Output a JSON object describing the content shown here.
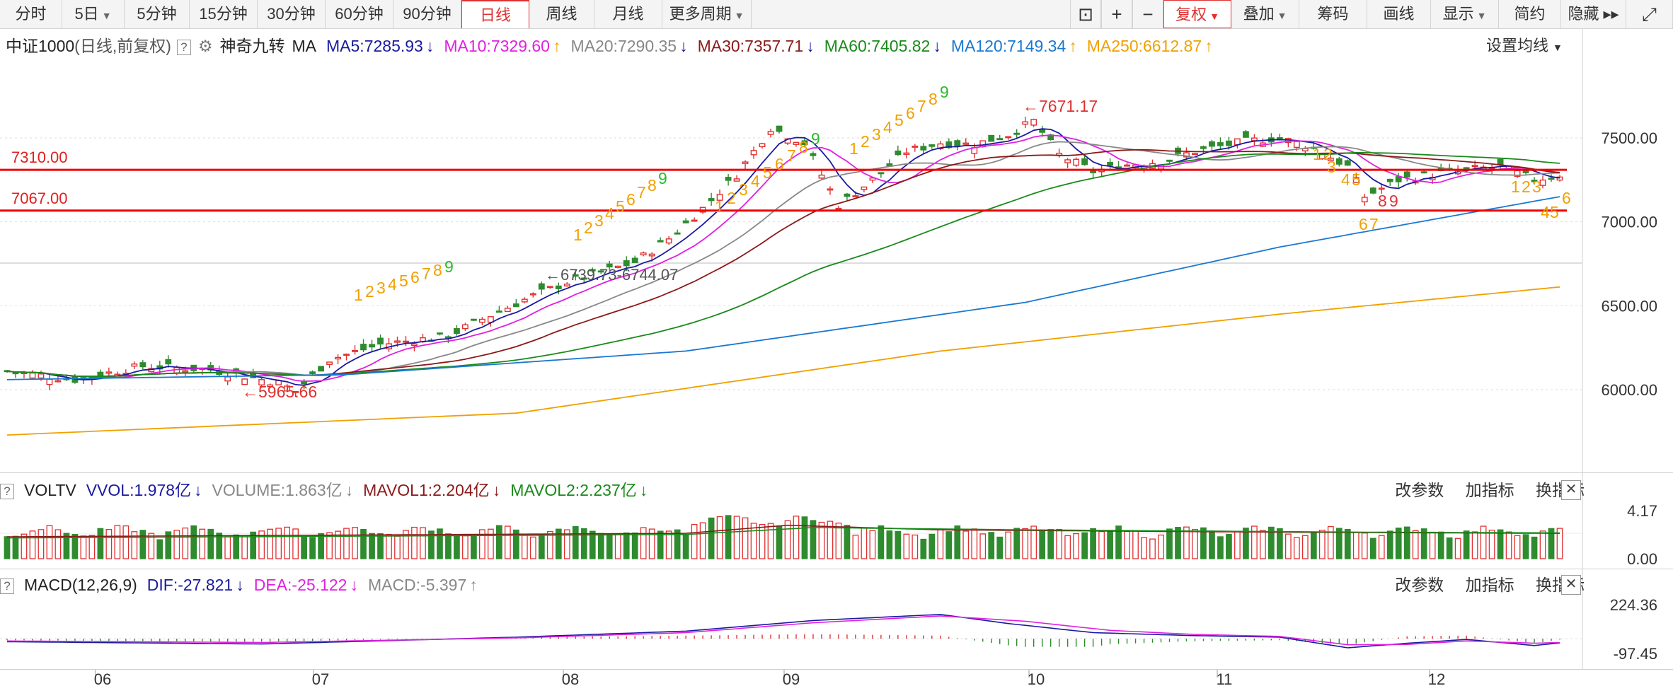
{
  "toolbar": {
    "left_buttons": [
      {
        "label": "分时",
        "active": false,
        "caret": false
      },
      {
        "label": "5日",
        "active": false,
        "caret": true
      },
      {
        "label": "5分钟",
        "active": false,
        "caret": false
      },
      {
        "label": "15分钟",
        "active": false,
        "caret": false
      },
      {
        "label": "30分钟",
        "active": false,
        "caret": false
      },
      {
        "label": "60分钟",
        "active": false,
        "caret": false
      },
      {
        "label": "90分钟",
        "active": false,
        "caret": false
      },
      {
        "label": "日线",
        "active": true,
        "caret": false
      },
      {
        "label": "周线",
        "active": false,
        "caret": false
      },
      {
        "label": "月线",
        "active": false,
        "caret": false
      },
      {
        "label": "更多周期",
        "active": false,
        "caret": true
      }
    ],
    "right_buttons": [
      {
        "label": "复权",
        "red": true,
        "caret": true
      },
      {
        "label": "叠加",
        "red": false,
        "caret": true
      },
      {
        "label": "筹码",
        "red": false,
        "caret": false
      },
      {
        "label": "画线",
        "red": false,
        "caret": false
      },
      {
        "label": "显示",
        "red": false,
        "caret": true
      },
      {
        "label": "简约",
        "red": false,
        "caret": false
      },
      {
        "label": "隐藏",
        "red": false,
        "caret": false
      }
    ],
    "lock_icon": "lock-icon",
    "zoom_in_icon": "plus-icon",
    "zoom_out_icon": "minus-icon",
    "fullscreen_icon": "fullscreen-icon",
    "expand_icon": "double-right-arrow-icon"
  },
  "main": {
    "index_name": "中证1000",
    "period_desc": "(日线,前复权)",
    "indicator_name": "神奇九转",
    "ma_label": "MA",
    "ma": [
      {
        "text": "MA5:7285.93",
        "arrow": "↓",
        "color": "#1a1aa0"
      },
      {
        "text": "MA10:7329.60",
        "arrow": "↑",
        "color": "#e020e0"
      },
      {
        "text": "MA20:7290.35",
        "arrow": "↓",
        "color": "#888888"
      },
      {
        "text": "MA30:7357.71",
        "arrow": "↓",
        "color": "#8b1a1a"
      },
      {
        "text": "MA60:7405.82",
        "arrow": "↓",
        "color": "#1a8a1a"
      },
      {
        "text": "MA120:7149.34",
        "arrow": "↑",
        "color": "#1a78d0"
      },
      {
        "text": "MA250:6612.87",
        "arrow": "↑",
        "color": "#f0a000"
      }
    ],
    "set_ma": "设置均线",
    "y_ticks": [
      "7500.00",
      "7000.00",
      "6500.00",
      "6000.00"
    ],
    "hlines": [
      {
        "label": "7310.00",
        "value": 7310
      },
      {
        "label": "7067.00",
        "value": 7067
      }
    ],
    "annotations": {
      "high": "7671.17",
      "low": "5965.66",
      "range": "6739.73-6744.07"
    }
  },
  "vol": {
    "title": "VOLTV",
    "items": [
      {
        "text": "VVOL:1.978亿",
        "arrow": "↓",
        "color": "#1a1aa0"
      },
      {
        "text": "VOLUME:1.863亿",
        "arrow": "↓",
        "color": "#888888"
      },
      {
        "text": "MAVOL1:2.204亿",
        "arrow": "↓",
        "color": "#8b1a1a"
      },
      {
        "text": "MAVOL2:2.237亿",
        "arrow": "↓",
        "color": "#1a8a1a"
      }
    ],
    "y_ticks": [
      "4.17",
      "0.00"
    ]
  },
  "macd": {
    "title": "MACD(12,26,9)",
    "items": [
      {
        "text": "DIF:-27.821",
        "arrow": "↓",
        "color": "#1a1aa0"
      },
      {
        "text": "DEA:-25.122",
        "arrow": "↓",
        "color": "#e020e0"
      },
      {
        "text": "MACD:-5.397",
        "arrow": "↑",
        "color": "#888888"
      }
    ],
    "y_ticks": [
      "224.36",
      "-97.45"
    ]
  },
  "sub_tools": [
    "改参数",
    "加指标",
    "换指标"
  ],
  "x_months": [
    "06",
    "07",
    "08",
    "09",
    "10",
    "11",
    "12"
  ],
  "nine_turn_labels": [
    "1",
    "2",
    "3",
    "4",
    "5",
    "6",
    "7",
    "8",
    "9"
  ],
  "colors": {
    "up": "#e03030",
    "down": "#2e8b2e",
    "line_red": "#f00000"
  }
}
